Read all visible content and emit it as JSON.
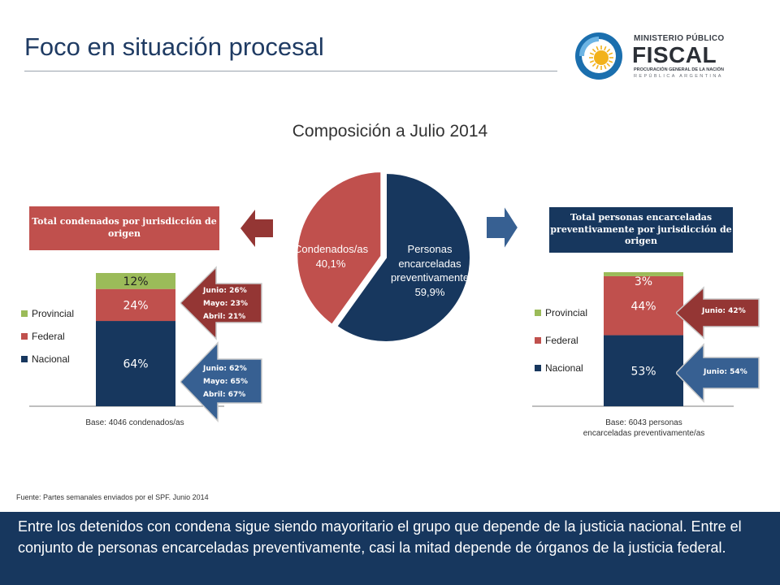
{
  "header": {
    "title": "Foco en situación procesal"
  },
  "logo": {
    "line1": "MINISTERIO PÚBLICO",
    "line2": "FISCAL",
    "line3": "PROCURACIÓN GENERAL DE LA NACIÓN",
    "line4": "REPÚBLICA ARGENTINA",
    "icon": "sun-seal-icon"
  },
  "colors": {
    "navy": "#17375e",
    "red": "#c0504d",
    "green": "#9bbb59",
    "dark_red_arrow": "#943634",
    "blue_arrow": "#376092"
  },
  "boxes": {
    "left": "Total condenados por jurisdicción de origen",
    "right": "Total personas encarceladas preventivamente por jurisdicción de origen"
  },
  "chart_data": [
    {
      "type": "pie",
      "title": "Composición a Julio 2014",
      "slices": [
        {
          "label_lines": [
            "Personas",
            "encarceladas",
            "preventivamente"
          ],
          "pct_label": "59,9%",
          "value": 59.9,
          "color": "#17375e"
        },
        {
          "label_lines": [
            "Condenados/as"
          ],
          "pct_label": "40,1%",
          "value": 40.1,
          "color": "#c0504d"
        }
      ]
    },
    {
      "type": "bar",
      "stacked": true,
      "base_label": "Base: 4046 condenados/as",
      "series": [
        {
          "name": "Nacional",
          "value": 64,
          "label": "64%",
          "color": "#17375e"
        },
        {
          "name": "Federal",
          "value": 24,
          "label": "24%",
          "color": "#c0504d"
        },
        {
          "name": "Provincial",
          "value": 12,
          "label": "12%",
          "color": "#9bbb59"
        }
      ],
      "ylim": [
        0,
        100
      ],
      "legend": [
        "Provincial",
        "Federal",
        "Nacional"
      ],
      "annotations": {
        "federal": [
          "Junio: 26%",
          "Mayo: 23%",
          "Abril: 21%"
        ],
        "nacional": [
          "Junio: 62%",
          "Mayo: 65%",
          "Abril: 67%"
        ]
      }
    },
    {
      "type": "bar",
      "stacked": true,
      "base_label_lines": [
        "Base: 6043 personas",
        "encarceladas preventivamente/as"
      ],
      "series": [
        {
          "name": "Nacional",
          "value": 53,
          "label": "53%",
          "color": "#17375e"
        },
        {
          "name": "Federal",
          "value": 44,
          "label": "44%",
          "color": "#c0504d"
        },
        {
          "name": "Provincial",
          "value": 3,
          "label": "3%",
          "color": "#9bbb59"
        }
      ],
      "ylim": [
        0,
        100
      ],
      "legend": [
        "Provincial",
        "Federal",
        "Nacional"
      ],
      "annotations": {
        "federal": [
          "Junio: 42%"
        ],
        "nacional": [
          "Junio: 54%"
        ]
      }
    }
  ],
  "source": "Fuente: Partes semanales enviados por el SPF. Junio 2014",
  "footer": "Entre los detenidos con condena sigue siendo mayoritario el grupo que depende de la justicia nacional. Entre el conjunto de personas encarceladas preventivamente, casi la mitad depende de órganos de la justicia federal."
}
